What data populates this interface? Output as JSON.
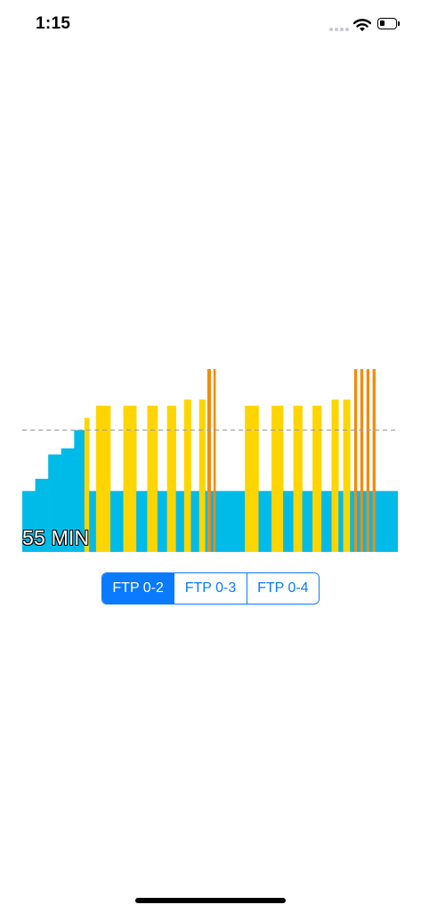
{
  "status_bar": {
    "time": "1:15",
    "icons": [
      "signal-dots-icon",
      "wifi-icon",
      "battery-icon"
    ],
    "battery_level": 0.3
  },
  "workout": {
    "duration_label": "55 MIN",
    "colors": {
      "base": "#00bbe8",
      "interval": "#ffd500",
      "peak": "#f28c0f",
      "ftp_line": "#9e9e9e"
    },
    "chart_data": {
      "type": "bar",
      "x_unit": "min",
      "y_unit": "FTP fraction",
      "xlim": [
        0,
        55
      ],
      "ylim": [
        0,
        1.5
      ],
      "ftp_reference_line": 1.0,
      "segments": [
        {
          "start": 0.0,
          "end": 1.9,
          "value": 0.5,
          "zone": "base"
        },
        {
          "start": 1.9,
          "end": 3.8,
          "value": 0.6,
          "zone": "base"
        },
        {
          "start": 3.8,
          "end": 5.7,
          "value": 0.8,
          "zone": "base"
        },
        {
          "start": 5.7,
          "end": 7.6,
          "value": 0.85,
          "zone": "base"
        },
        {
          "start": 7.6,
          "end": 9.1,
          "value": 1.0,
          "zone": "base"
        },
        {
          "start": 9.1,
          "end": 9.8,
          "value": 1.1,
          "zone": "interval"
        },
        {
          "start": 9.8,
          "end": 10.8,
          "value": 0.5,
          "zone": "base"
        },
        {
          "start": 10.8,
          "end": 12.9,
          "value": 1.2,
          "zone": "interval"
        },
        {
          "start": 12.9,
          "end": 14.8,
          "value": 0.5,
          "zone": "base"
        },
        {
          "start": 14.8,
          "end": 16.7,
          "value": 1.2,
          "zone": "interval"
        },
        {
          "start": 16.7,
          "end": 18.3,
          "value": 0.5,
          "zone": "base"
        },
        {
          "start": 18.3,
          "end": 19.8,
          "value": 1.2,
          "zone": "interval"
        },
        {
          "start": 19.8,
          "end": 21.2,
          "value": 0.5,
          "zone": "base"
        },
        {
          "start": 21.2,
          "end": 22.5,
          "value": 1.2,
          "zone": "interval"
        },
        {
          "start": 22.5,
          "end": 23.7,
          "value": 0.5,
          "zone": "base"
        },
        {
          "start": 23.7,
          "end": 24.7,
          "value": 1.25,
          "zone": "interval"
        },
        {
          "start": 24.7,
          "end": 25.9,
          "value": 0.5,
          "zone": "base"
        },
        {
          "start": 25.9,
          "end": 26.8,
          "value": 1.25,
          "zone": "interval"
        },
        {
          "start": 26.8,
          "end": 27.1,
          "value": 0.5,
          "zone": "base"
        },
        {
          "start": 27.1,
          "end": 27.6,
          "value": 1.5,
          "zone": "peak"
        },
        {
          "start": 27.6,
          "end": 28.0,
          "value": 0.5,
          "zone": "base"
        },
        {
          "start": 28.0,
          "end": 28.3,
          "value": 1.5,
          "zone": "peak"
        },
        {
          "start": 28.3,
          "end": 32.6,
          "value": 0.5,
          "zone": "base"
        },
        {
          "start": 32.6,
          "end": 34.6,
          "value": 1.2,
          "zone": "interval"
        },
        {
          "start": 34.6,
          "end": 36.5,
          "value": 0.5,
          "zone": "base"
        },
        {
          "start": 36.5,
          "end": 38.2,
          "value": 1.2,
          "zone": "interval"
        },
        {
          "start": 38.2,
          "end": 39.7,
          "value": 0.5,
          "zone": "base"
        },
        {
          "start": 39.7,
          "end": 41.0,
          "value": 1.2,
          "zone": "interval"
        },
        {
          "start": 41.0,
          "end": 42.5,
          "value": 0.5,
          "zone": "base"
        },
        {
          "start": 42.5,
          "end": 43.8,
          "value": 1.2,
          "zone": "interval"
        },
        {
          "start": 43.8,
          "end": 45.3,
          "value": 0.5,
          "zone": "base"
        },
        {
          "start": 45.3,
          "end": 46.3,
          "value": 1.25,
          "zone": "interval"
        },
        {
          "start": 46.3,
          "end": 47.0,
          "value": 0.5,
          "zone": "base"
        },
        {
          "start": 47.0,
          "end": 48.0,
          "value": 1.25,
          "zone": "interval"
        },
        {
          "start": 48.0,
          "end": 48.6,
          "value": 0.5,
          "zone": "base"
        },
        {
          "start": 48.6,
          "end": 49.0,
          "value": 1.5,
          "zone": "peak"
        },
        {
          "start": 49.0,
          "end": 49.5,
          "value": 0.5,
          "zone": "base"
        },
        {
          "start": 49.5,
          "end": 49.9,
          "value": 1.5,
          "zone": "peak"
        },
        {
          "start": 49.9,
          "end": 50.4,
          "value": 0.5,
          "zone": "base"
        },
        {
          "start": 50.4,
          "end": 50.8,
          "value": 1.5,
          "zone": "peak"
        },
        {
          "start": 50.8,
          "end": 51.3,
          "value": 0.5,
          "zone": "base"
        },
        {
          "start": 51.3,
          "end": 51.7,
          "value": 1.5,
          "zone": "peak"
        },
        {
          "start": 51.7,
          "end": 55.0,
          "value": 0.5,
          "zone": "base"
        }
      ]
    }
  },
  "segmented_control": {
    "options": [
      {
        "label": "FTP 0-2",
        "selected": true
      },
      {
        "label": "FTP 0-3",
        "selected": false
      },
      {
        "label": "FTP 0-4",
        "selected": false
      }
    ]
  }
}
